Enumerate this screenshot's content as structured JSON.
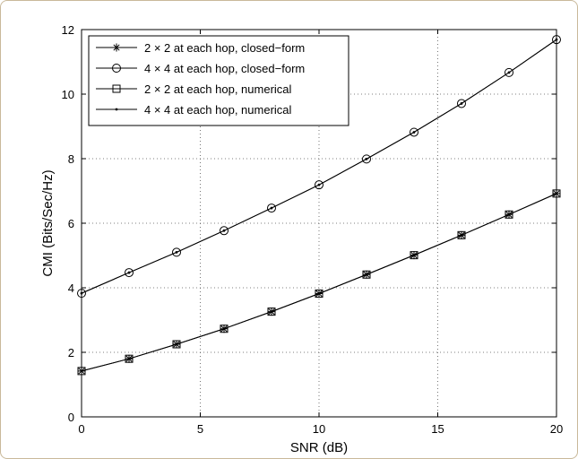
{
  "chart_data": {
    "type": "line",
    "xlabel": "SNR (dB)",
    "ylabel": "CMI (Bits/Sec/Hz)",
    "xlim": [
      0,
      20
    ],
    "ylim": [
      0,
      12
    ],
    "xticks": [
      0,
      5,
      10,
      15,
      20
    ],
    "yticks": [
      0,
      2,
      4,
      6,
      8,
      10,
      12
    ],
    "grid": true,
    "legend_position": "top-left",
    "x": [
      0,
      2,
      4,
      6,
      8,
      10,
      12,
      14,
      16,
      18,
      20
    ],
    "series": [
      {
        "name": "2 × 2 at each hop, closed−form",
        "marker": "star",
        "values": [
          1.42,
          1.8,
          2.25,
          2.73,
          3.26,
          3.82,
          4.41,
          5.01,
          5.63,
          6.27,
          6.92
        ]
      },
      {
        "name": "4 × 4 at each hop, closed−form",
        "marker": "circle",
        "values": [
          3.83,
          4.47,
          5.1,
          5.77,
          6.47,
          7.19,
          7.99,
          8.82,
          9.71,
          10.67,
          11.69
        ]
      },
      {
        "name": "2 × 2 at each hop, numerical",
        "marker": "square",
        "values": [
          1.42,
          1.8,
          2.25,
          2.73,
          3.26,
          3.82,
          4.41,
          5.01,
          5.63,
          6.27,
          6.92
        ]
      },
      {
        "name": "4 × 4 at each hop, numerical",
        "marker": "dot",
        "values": [
          3.83,
          4.47,
          5.1,
          5.77,
          6.47,
          7.19,
          7.99,
          8.82,
          9.71,
          10.67,
          11.69
        ]
      }
    ]
  }
}
